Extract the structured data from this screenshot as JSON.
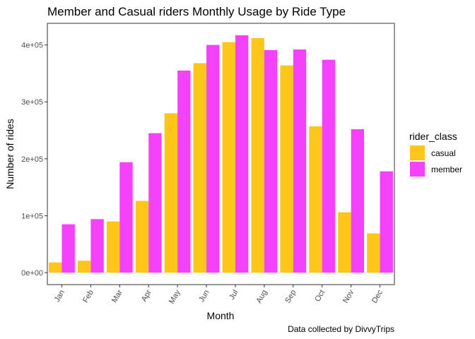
{
  "chart_data": {
    "type": "bar",
    "title": "Member and Casual riders Monthly Usage by Ride Type",
    "xlabel": "Month",
    "ylabel": "Number of rides",
    "caption": "Data collected by DivvyTrips",
    "categories": [
      "Jan",
      "Feb",
      "Mar",
      "Apr",
      "May",
      "Jun",
      "Jul",
      "Aug",
      "Sep",
      "Oct",
      "Nov",
      "Dec"
    ],
    "series": [
      {
        "name": "casual",
        "color": "#FFC61A",
        "values": [
          18000,
          21000,
          90000,
          126000,
          280000,
          368000,
          405000,
          412000,
          364000,
          257000,
          106000,
          69000
        ]
      },
      {
        "name": "member",
        "color": "#F442FA",
        "values": [
          85000,
          94000,
          194000,
          245000,
          355000,
          400000,
          417000,
          391000,
          392000,
          374000,
          252000,
          178000
        ]
      }
    ],
    "yticks": [
      0,
      100000,
      200000,
      300000,
      400000
    ],
    "ytick_labels": [
      "0e+00",
      "1e+05",
      "2e+05",
      "3e+05",
      "4e+05"
    ],
    "ylim": [
      -21000,
      438000
    ],
    "grid": false,
    "legend": {
      "title": "rider_class",
      "position": "right"
    }
  }
}
